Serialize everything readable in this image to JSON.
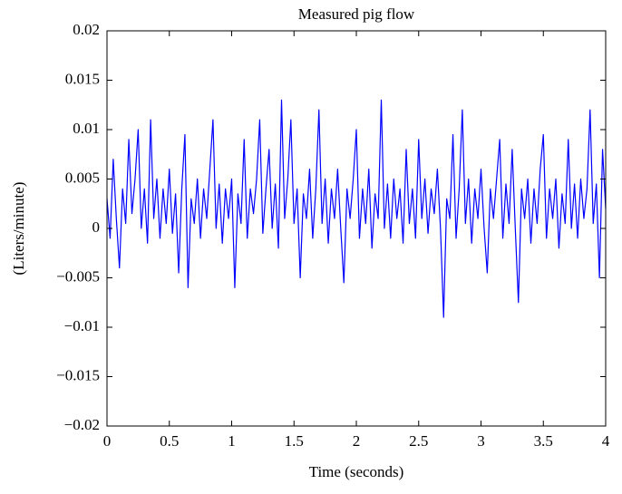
{
  "chart_data": {
    "type": "line",
    "title": "Measured pig flow",
    "xlabel": "Time (seconds)",
    "ylabel": "(Liters/minute)",
    "color": "#0000ff",
    "xlim": [
      0,
      4
    ],
    "ylim": [
      -0.02,
      0.02
    ],
    "xticks": [
      0,
      0.5,
      1,
      1.5,
      2,
      2.5,
      3,
      3.5,
      4
    ],
    "yticks": [
      {
        "value": -0.02,
        "label": "−0.02"
      },
      {
        "value": -0.015,
        "label": "−0.015"
      },
      {
        "value": -0.01,
        "label": "−0.01"
      },
      {
        "value": -0.005,
        "label": "−0.005"
      },
      0,
      0.005,
      0.01,
      0.015,
      0.02
    ],
    "grid": false,
    "x": [
      0,
      0.025,
      0.05,
      0.075,
      0.1,
      0.125,
      0.15,
      0.175,
      0.2,
      0.225,
      0.25,
      0.275,
      0.3,
      0.325,
      0.35,
      0.375,
      0.4,
      0.425,
      0.45,
      0.475,
      0.5,
      0.525,
      0.55,
      0.575,
      0.6,
      0.625,
      0.65,
      0.675,
      0.7,
      0.725,
      0.75,
      0.775,
      0.8,
      0.825,
      0.85,
      0.875,
      0.9,
      0.925,
      0.95,
      0.975,
      1,
      1.025,
      1.05,
      1.075,
      1.1,
      1.125,
      1.15,
      1.175,
      1.2,
      1.225,
      1.25,
      1.275,
      1.3,
      1.325,
      1.35,
      1.375,
      1.4,
      1.425,
      1.45,
      1.475,
      1.5,
      1.525,
      1.55,
      1.575,
      1.6,
      1.625,
      1.65,
      1.675,
      1.7,
      1.725,
      1.75,
      1.775,
      1.8,
      1.825,
      1.85,
      1.875,
      1.9,
      1.925,
      1.95,
      1.975,
      2,
      2.025,
      2.05,
      2.075,
      2.1,
      2.125,
      2.15,
      2.175,
      2.2,
      2.225,
      2.25,
      2.275,
      2.3,
      2.325,
      2.35,
      2.375,
      2.4,
      2.425,
      2.45,
      2.475,
      2.5,
      2.525,
      2.55,
      2.575,
      2.6,
      2.625,
      2.65,
      2.675,
      2.7,
      2.725,
      2.75,
      2.775,
      2.8,
      2.825,
      2.85,
      2.875,
      2.9,
      2.925,
      2.95,
      2.975,
      3,
      3.025,
      3.05,
      3.075,
      3.1,
      3.125,
      3.15,
      3.175,
      3.2,
      3.225,
      3.25,
      3.275,
      3.3,
      3.325,
      3.35,
      3.375,
      3.4,
      3.425,
      3.45,
      3.475,
      3.5,
      3.525,
      3.55,
      3.575,
      3.6,
      3.625,
      3.65,
      3.675,
      3.7,
      3.725,
      3.75,
      3.775,
      3.8,
      3.825,
      3.85,
      3.875,
      3.9,
      3.925,
      3.95,
      3.975,
      4
    ],
    "values": [
      0.003,
      -0.001,
      0.007,
      0.001,
      -0.004,
      0.004,
      0.0005,
      0.009,
      0.0015,
      0.005,
      0.01,
      0,
      0.004,
      -0.0015,
      0.011,
      0.001,
      0.005,
      -0.001,
      0.004,
      0.0005,
      0.006,
      -0.0005,
      0.0035,
      -0.0045,
      0.004,
      0.0095,
      -0.006,
      0.003,
      0.0005,
      0.005,
      -0.001,
      0.004,
      0.001,
      0.006,
      0.011,
      0,
      0.0045,
      -0.0015,
      0.004,
      0.001,
      0.005,
      -0.006,
      0.0035,
      0.0005,
      0.009,
      -0.001,
      0.004,
      0.0015,
      0.005,
      0.011,
      -0.0005,
      0.004,
      0.008,
      0,
      0.0045,
      -0.002,
      0.013,
      0.001,
      0.005,
      0.011,
      0.0005,
      0.004,
      -0.005,
      0.0035,
      0.001,
      0.006,
      -0.001,
      0.004,
      0.012,
      0.0005,
      0.005,
      -0.0015,
      0.004,
      0.001,
      0.006,
      0,
      -0.0055,
      0.004,
      0.001,
      0.005,
      0.01,
      -0.001,
      0.004,
      0.0005,
      0.006,
      -0.002,
      0.0035,
      0.001,
      0.013,
      0,
      0.0045,
      -0.001,
      0.005,
      0.001,
      0.004,
      -0.0015,
      0.008,
      0.0005,
      0.004,
      -0.001,
      0.009,
      0.001,
      0.005,
      -0.0005,
      0.004,
      0.0015,
      0.006,
      0,
      -0.009,
      0.003,
      0.001,
      0.0095,
      -0.001,
      0.004,
      0.012,
      0.0005,
      0.005,
      -0.0015,
      0.004,
      0.001,
      0.006,
      0,
      -0.0045,
      0.004,
      0.001,
      0.005,
      0.009,
      -0.001,
      0.0045,
      0.0005,
      0.008,
      0,
      -0.0075,
      0.004,
      0.001,
      0.005,
      -0.0015,
      0.004,
      0.0005,
      0.006,
      0.0095,
      -0.001,
      0.004,
      0.001,
      0.005,
      -0.002,
      0.0035,
      0.0005,
      0.009,
      0,
      0.0045,
      -0.001,
      0.005,
      0.001,
      0.004,
      0.012,
      0.0005,
      0.0045,
      -0.005,
      0.008,
      0.002
    ]
  }
}
